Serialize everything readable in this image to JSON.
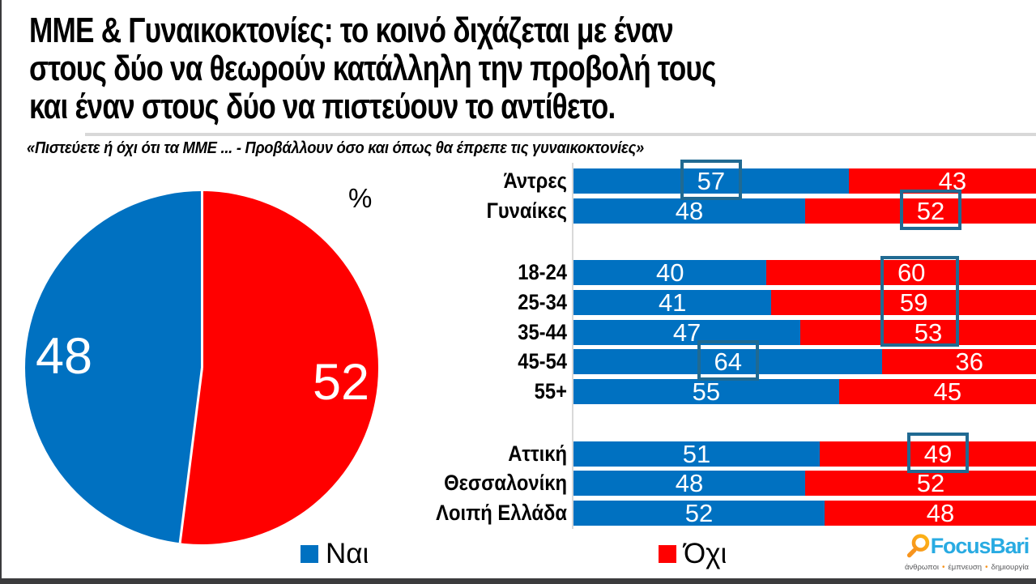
{
  "title_lines": [
    "ΜΜΕ & Γυναικοκτονίες: το κοινό διχάζεται με έναν",
    "στους δύο να θεωρούν κατάλληλη την προβολή τους",
    "και έναν στους δύο να πιστεύουν το αντίθετο."
  ],
  "subtitle": "«Πιστεύετε ή όχι ότι τα ΜΜΕ ... - Προβάλλουν όσο και όπως θα έπρεπε τις γυναικοκτονίες»",
  "unit_label": "%",
  "colors": {
    "yes": "#0071C1",
    "no": "#FF0000",
    "highlight": "#206A92",
    "separator": "#D8D8D8",
    "frame": "#3B3B3D"
  },
  "legend": {
    "yes_label": "Ναι",
    "no_label": "Όχι"
  },
  "chart_data": [
    {
      "type": "pie",
      "labels": [
        "Ναι",
        "Όχι"
      ],
      "values": [
        48,
        52
      ],
      "unit": "%",
      "colors": [
        "#0071C1",
        "#FF0000"
      ],
      "start_angle": "top",
      "direction": "clockwise"
    },
    {
      "type": "bar",
      "orientation": "horizontal_stacked",
      "unit": "%",
      "xlim": [
        0,
        100
      ],
      "groups": [
        {
          "name": "gender",
          "categories": [
            "Άντρες",
            "Γυναίκες"
          ]
        },
        {
          "name": "age",
          "categories": [
            "18-24",
            "25-34",
            "35-44",
            "45-54",
            "55+"
          ]
        },
        {
          "name": "region",
          "categories": [
            "Αττική",
            "Θεσσαλονίκη",
            "Λοιπή Ελλάδα"
          ]
        }
      ],
      "categories": [
        "Άντρες",
        "Γυναίκες",
        "18-24",
        "25-34",
        "35-44",
        "45-54",
        "55+",
        "Αττική",
        "Θεσσαλονίκη",
        "Λοιπή Ελλάδα"
      ],
      "series": [
        {
          "name": "Ναι",
          "color": "#0071C1",
          "values": [
            57,
            48,
            40,
            41,
            47,
            64,
            55,
            51,
            48,
            52
          ]
        },
        {
          "name": "Όχι",
          "color": "#FF0000",
          "values": [
            43,
            52,
            60,
            59,
            53,
            36,
            45,
            49,
            52,
            48
          ]
        }
      ],
      "highlights": [
        {
          "categories": [
            "Άντρες"
          ],
          "series": "Ναι",
          "value": 57
        },
        {
          "categories": [
            "Γυναίκες"
          ],
          "series": "Όχι",
          "value": 52
        },
        {
          "categories": [
            "18-24",
            "25-34",
            "35-44"
          ],
          "series": "Όχι",
          "values": [
            60,
            59,
            53
          ]
        },
        {
          "categories": [
            "45-54"
          ],
          "series": "Ναι",
          "value": 64
        },
        {
          "categories": [
            "Αττική"
          ],
          "series": "Όχι",
          "value": 49
        }
      ],
      "legend_position": "bottom"
    }
  ],
  "logo": {
    "brand": "FocusBari",
    "tagline": [
      "άνθρωποι",
      "έμπνευση",
      "δημιουργία"
    ],
    "brand_color": "#29ABE2",
    "accent_color": "#F7941E"
  }
}
